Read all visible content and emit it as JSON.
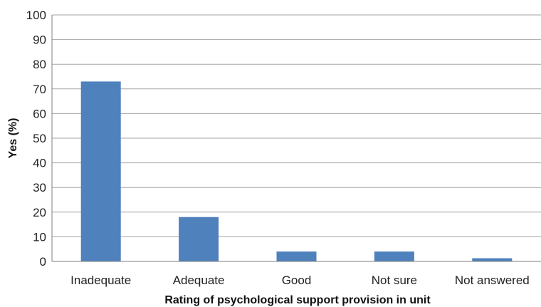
{
  "chart_data": {
    "type": "bar",
    "categories": [
      "Inadequate",
      "Adequate",
      "Good",
      "Not sure",
      "Not answered"
    ],
    "values": [
      73,
      18,
      4,
      4,
      1.3
    ],
    "xlabel": "Rating of psychological support provision in unit",
    "ylabel": "Yes (%)",
    "ylim": [
      0,
      100
    ],
    "yticks": [
      0,
      10,
      20,
      30,
      40,
      50,
      60,
      70,
      80,
      90,
      100
    ],
    "grid": true,
    "legend": "none",
    "bar_color": "#4f81bd"
  }
}
